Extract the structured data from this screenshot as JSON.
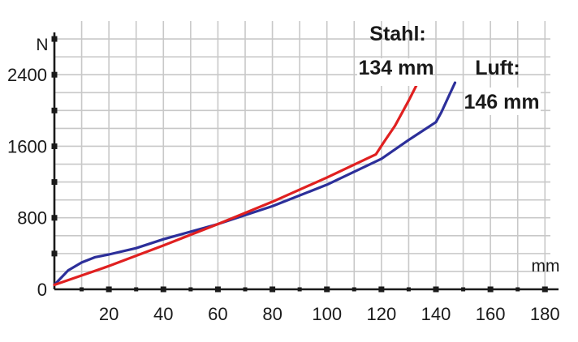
{
  "chart_data": {
    "type": "line",
    "title": "",
    "xlabel": "mm",
    "ylabel": "N",
    "xlim": [
      0,
      182
    ],
    "ylim": [
      0,
      3000
    ],
    "grid": true,
    "x_ticks": [
      20,
      40,
      60,
      80,
      100,
      120,
      140,
      160,
      180
    ],
    "y_ticks": [
      0,
      800,
      1600,
      2400
    ],
    "x_tick_labels": [
      "20",
      "40",
      "60",
      "80",
      "100",
      "120",
      "140",
      "160",
      "180"
    ],
    "y_tick_labels": [
      "0",
      "800",
      "1600",
      "2400"
    ],
    "series": [
      {
        "key": "stahl",
        "color": "#e02020",
        "x": [
          0,
          20,
          40,
          60,
          80,
          100,
          118,
          121,
          125,
          130,
          135
        ],
        "y": [
          50,
          260,
          490,
          730,
          980,
          1250,
          1510,
          1650,
          1830,
          2110,
          2410
        ]
      },
      {
        "key": "luft",
        "color": "#2c2f9a",
        "x": [
          0,
          5,
          10,
          15,
          20,
          30,
          40,
          60,
          80,
          100,
          120,
          130,
          140,
          142,
          145,
          147
        ],
        "y": [
          50,
          210,
          300,
          360,
          390,
          460,
          560,
          730,
          930,
          1170,
          1460,
          1670,
          1870,
          1980,
          2180,
          2310
        ]
      }
    ],
    "annotations": [
      {
        "series": "stahl",
        "lines": [
          "Stahl:",
          "134 mm"
        ]
      },
      {
        "series": "luft",
        "lines": [
          "Luft:",
          "146 mm"
        ]
      }
    ]
  }
}
